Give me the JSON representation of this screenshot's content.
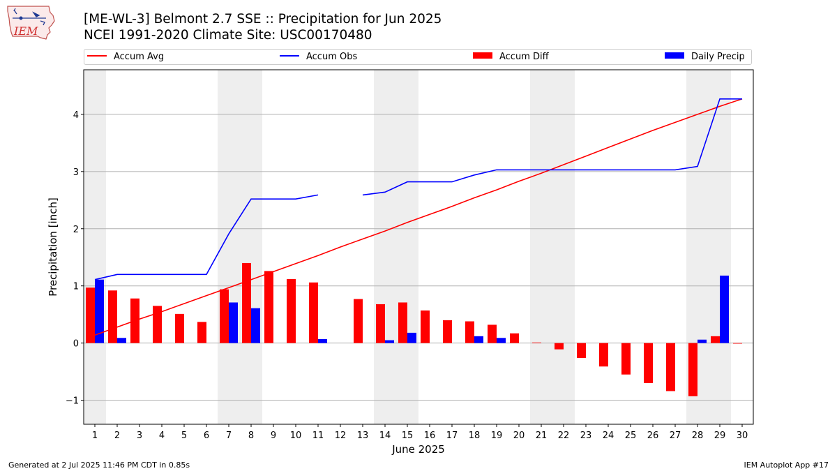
{
  "header": {
    "title": "[ME-WL-3] Belmont 2.7 SSE :: Precipitation for Jun 2025",
    "subtitle": "NCEI 1991-2020 Climate Site: USC00170480",
    "logo_text": "IEM"
  },
  "legend": {
    "items": [
      {
        "label": "Accum Avg",
        "kind": "line",
        "color": "#ff0000"
      },
      {
        "label": "Accum Obs",
        "kind": "line",
        "color": "#0000ff"
      },
      {
        "label": "Accum Diff",
        "kind": "box",
        "color": "#ff0000"
      },
      {
        "label": "Daily Precip",
        "kind": "box",
        "color": "#0000ff"
      }
    ]
  },
  "footer": {
    "left": "Generated at 2 Jul 2025 11:46 PM CDT in 0.85s",
    "right": "IEM Autoplot App #17"
  },
  "chart_data": {
    "type": "bar",
    "xlabel": "June 2025",
    "ylabel": "Precipitation [inch]",
    "ylim": [
      -1.42,
      4.78
    ],
    "xlim": [
      0.5,
      30.5
    ],
    "yticks": [
      -1,
      0,
      1,
      2,
      3,
      4
    ],
    "ytick_labels": [
      "−1",
      "0",
      "1",
      "2",
      "3",
      "4"
    ],
    "categories": [
      "1",
      "2",
      "3",
      "4",
      "5",
      "6",
      "7",
      "8",
      "9",
      "10",
      "11",
      "12",
      "13",
      "14",
      "15",
      "16",
      "17",
      "18",
      "19",
      "20",
      "21",
      "22",
      "23",
      "24",
      "25",
      "26",
      "27",
      "28",
      "29",
      "30"
    ],
    "grid": "horizontal",
    "legend_position": "top",
    "weekend_shading": [
      [
        0.5,
        1.5
      ],
      [
        6.5,
        8.5
      ],
      [
        13.5,
        15.5
      ],
      [
        20.5,
        22.5
      ],
      [
        27.5,
        29.5
      ]
    ],
    "series": [
      {
        "name": "Accum Avg",
        "kind": "line",
        "color": "#ff0000",
        "values": [
          0.14,
          0.28,
          0.42,
          0.55,
          0.69,
          0.83,
          0.97,
          1.11,
          1.25,
          1.39,
          1.53,
          1.68,
          1.82,
          1.96,
          2.11,
          2.25,
          2.39,
          2.54,
          2.68,
          2.83,
          2.97,
          3.12,
          3.27,
          3.42,
          3.57,
          3.72,
          3.86,
          4.0,
          4.14,
          4.27
        ]
      },
      {
        "name": "Accum Obs",
        "kind": "line",
        "color": "#0000ff",
        "values": [
          1.11,
          1.2,
          1.2,
          1.2,
          1.2,
          1.2,
          1.91,
          2.52,
          2.52,
          2.52,
          2.59,
          null,
          2.59,
          2.64,
          2.82,
          2.82,
          2.82,
          2.94,
          3.03,
          3.03,
          3.03,
          3.03,
          3.03,
          3.03,
          3.03,
          3.03,
          3.03,
          3.09,
          4.27,
          4.27
        ]
      },
      {
        "name": "Accum Diff",
        "kind": "bar",
        "color": "#ff0000",
        "values": [
          0.97,
          0.92,
          0.78,
          0.65,
          0.51,
          0.37,
          0.94,
          1.4,
          1.26,
          1.12,
          1.06,
          null,
          0.77,
          0.68,
          0.71,
          0.57,
          0.4,
          0.38,
          0.32,
          0.17,
          0.01,
          -0.11,
          -0.26,
          -0.41,
          -0.55,
          -0.7,
          -0.84,
          -0.93,
          0.12,
          -0.01
        ]
      },
      {
        "name": "Daily Precip",
        "kind": "bar",
        "color": "#0000ff",
        "values": [
          1.11,
          0.09,
          0,
          0,
          0,
          0,
          0.71,
          0.61,
          0,
          0,
          0.07,
          null,
          0,
          0.05,
          0.18,
          0,
          0,
          0.12,
          0.09,
          0,
          0,
          0,
          0,
          0,
          0,
          0,
          0,
          0.06,
          1.18,
          0
        ]
      }
    ]
  }
}
